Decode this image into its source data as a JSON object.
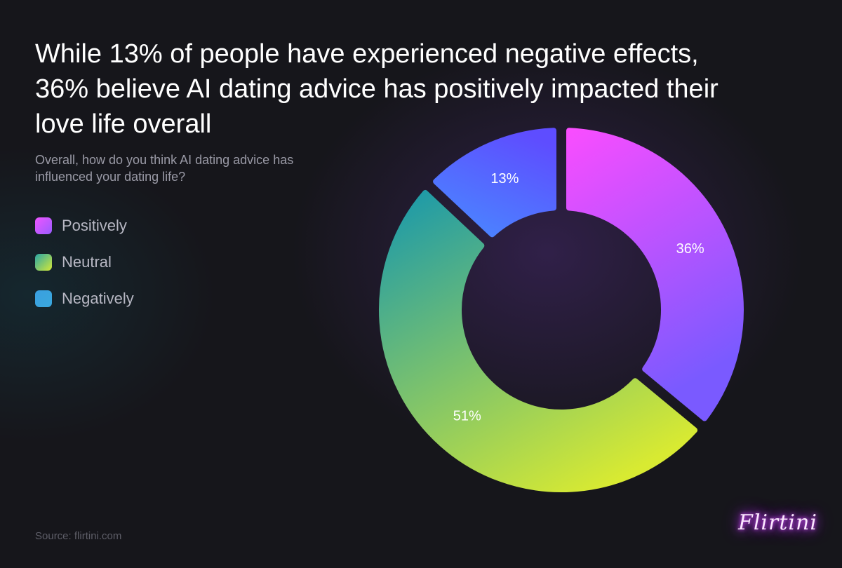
{
  "header": {
    "title": "While 13% of people have experienced negative effects, 36% believe AI dating advice has positively impacted their love life overall",
    "subtitle": "Overall, how do you think AI dating advice has influenced your dating life?"
  },
  "legend": [
    {
      "label": "Positively",
      "color_start": "#ee55ff",
      "color_end": "#9a5cff"
    },
    {
      "label": "Neutral",
      "color_start": "#2aa6a6",
      "color_end": "#d4e838"
    },
    {
      "label": "Negatively",
      "color_start": "#3a9fe0",
      "color_end": "#3aa8dd"
    }
  ],
  "chart_data": {
    "type": "pie",
    "categories": [
      "Positively",
      "Neutral",
      "Negatively"
    ],
    "values": [
      36,
      51,
      13
    ],
    "value_labels": [
      "36%",
      "51%",
      "13%"
    ],
    "colors": {
      "Positively": [
        "#f94dff",
        "#7a5aff"
      ],
      "Neutral": [
        "#1e9aa8",
        "#d8ea32"
      ],
      "Negatively": [
        "#5e4dff",
        "#4a86ff"
      ]
    },
    "donut": true,
    "legend_position": "left"
  },
  "footer": {
    "source": "Source: flirtini.com",
    "logo_text": "Flirtini"
  }
}
